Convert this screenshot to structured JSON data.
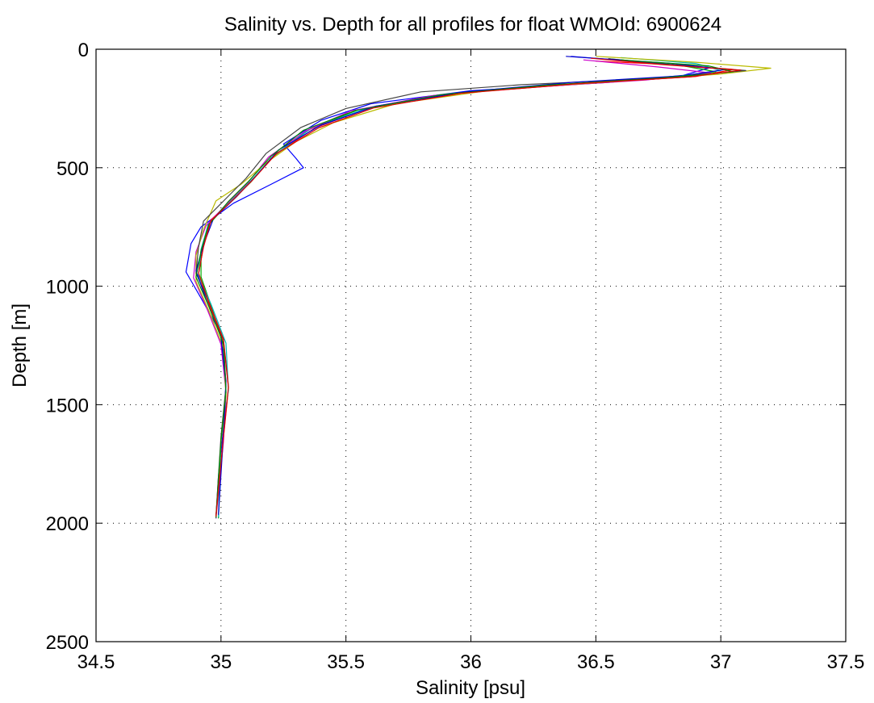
{
  "chart_data": {
    "type": "line",
    "title": "Salinity vs. Depth for all profiles for float WMOId: 6900624",
    "xlabel": "Salinity [psu]",
    "ylabel": "Depth [m]",
    "xlim": [
      34.5,
      37.5
    ],
    "ylim": [
      0,
      2500
    ],
    "y_reversed": true,
    "grid": true,
    "xticks": [
      34.5,
      35,
      35.5,
      36,
      36.5,
      37,
      37.5
    ],
    "yticks": [
      0,
      500,
      1000,
      1500,
      2000,
      2500
    ],
    "xtick_labels": [
      "34.5",
      "35",
      "35.5",
      "36",
      "36.5",
      "37",
      "37.5"
    ],
    "ytick_labels": [
      "0",
      "500",
      "1000",
      "1500",
      "2000",
      "2500"
    ],
    "series": [
      {
        "color": "#0000ff",
        "points": [
          [
            36.4,
            30
          ],
          [
            36.7,
            55
          ],
          [
            36.95,
            80
          ],
          [
            36.85,
            110
          ],
          [
            36.55,
            140
          ],
          [
            36.0,
            175
          ],
          [
            35.6,
            230
          ],
          [
            35.4,
            300
          ],
          [
            35.25,
            400
          ],
          [
            35.3,
            460
          ],
          [
            35.33,
            500
          ],
          [
            35.2,
            570
          ],
          [
            35.05,
            650
          ],
          [
            34.92,
            750
          ],
          [
            34.88,
            820
          ],
          [
            34.86,
            940
          ],
          [
            34.92,
            1050
          ],
          [
            35.0,
            1200
          ],
          [
            35.02,
            1400
          ],
          [
            35.01,
            1600
          ],
          [
            34.99,
            1800
          ],
          [
            34.98,
            1980
          ]
        ]
      },
      {
        "color": "#00aa00",
        "points": [
          [
            36.55,
            40
          ],
          [
            36.85,
            70
          ],
          [
            36.98,
            95
          ],
          [
            36.75,
            125
          ],
          [
            36.3,
            155
          ],
          [
            35.9,
            190
          ],
          [
            35.55,
            255
          ],
          [
            35.35,
            340
          ],
          [
            35.2,
            460
          ],
          [
            35.12,
            560
          ],
          [
            35.03,
            650
          ],
          [
            34.95,
            740
          ],
          [
            34.92,
            850
          ],
          [
            34.92,
            960
          ],
          [
            34.96,
            1080
          ],
          [
            35.01,
            1250
          ],
          [
            35.02,
            1450
          ],
          [
            35.0,
            1650
          ],
          [
            34.99,
            1980
          ]
        ]
      },
      {
        "color": "#ff0000",
        "points": [
          [
            36.5,
            50
          ],
          [
            36.8,
            65
          ],
          [
            37.05,
            85
          ],
          [
            36.9,
            115
          ],
          [
            36.45,
            145
          ],
          [
            35.95,
            185
          ],
          [
            35.6,
            245
          ],
          [
            35.38,
            330
          ],
          [
            35.22,
            440
          ],
          [
            35.13,
            545
          ],
          [
            35.05,
            630
          ],
          [
            34.96,
            720
          ],
          [
            34.93,
            830
          ],
          [
            34.91,
            950
          ],
          [
            34.95,
            1070
          ],
          [
            35.01,
            1230
          ],
          [
            35.03,
            1430
          ],
          [
            35.01,
            1640
          ],
          [
            34.98,
            1970
          ]
        ]
      },
      {
        "color": "#00bbbb",
        "points": [
          [
            36.6,
            35
          ],
          [
            36.9,
            60
          ],
          [
            37.0,
            90
          ],
          [
            36.8,
            118
          ],
          [
            36.35,
            150
          ],
          [
            35.92,
            188
          ],
          [
            35.58,
            250
          ],
          [
            35.36,
            335
          ],
          [
            35.21,
            450
          ],
          [
            35.12,
            555
          ],
          [
            35.04,
            640
          ],
          [
            34.95,
            735
          ],
          [
            34.92,
            845
          ],
          [
            34.91,
            955
          ],
          [
            34.96,
            1075
          ],
          [
            35.02,
            1240
          ],
          [
            35.03,
            1440
          ],
          [
            35.0,
            1650
          ],
          [
            34.99,
            1975
          ]
        ]
      },
      {
        "color": "#cc00cc",
        "points": [
          [
            36.45,
            45
          ],
          [
            36.75,
            75
          ],
          [
            36.96,
            100
          ],
          [
            36.7,
            130
          ],
          [
            36.25,
            160
          ],
          [
            35.85,
            195
          ],
          [
            35.52,
            260
          ],
          [
            35.34,
            345
          ],
          [
            35.19,
            455
          ],
          [
            35.11,
            560
          ],
          [
            35.03,
            645
          ],
          [
            34.94,
            745
          ],
          [
            34.9,
            855
          ],
          [
            34.89,
            965
          ],
          [
            34.94,
            1085
          ],
          [
            35.0,
            1245
          ],
          [
            35.02,
            1445
          ],
          [
            35.01,
            1655
          ],
          [
            34.98,
            1980
          ]
        ]
      },
      {
        "color": "#bbbb00",
        "points": [
          [
            36.5,
            30
          ],
          [
            36.9,
            55
          ],
          [
            37.2,
            80
          ],
          [
            37.0,
            105
          ],
          [
            36.6,
            135
          ],
          [
            36.1,
            170
          ],
          [
            35.7,
            230
          ],
          [
            35.45,
            310
          ],
          [
            35.3,
            390
          ],
          [
            35.18,
            480
          ],
          [
            35.08,
            570
          ],
          [
            34.98,
            640
          ],
          [
            34.93,
            760
          ],
          [
            34.9,
            870
          ],
          [
            34.9,
            980
          ],
          [
            34.95,
            1100
          ],
          [
            35.01,
            1260
          ],
          [
            35.02,
            1460
          ],
          [
            35.0,
            1660
          ],
          [
            34.98,
            1975
          ]
        ]
      },
      {
        "color": "#444444",
        "points": [
          [
            36.55,
            40
          ],
          [
            36.85,
            70
          ],
          [
            37.1,
            90
          ],
          [
            36.8,
            120
          ],
          [
            36.2,
            150
          ],
          [
            35.8,
            180
          ],
          [
            35.5,
            250
          ],
          [
            35.32,
            330
          ],
          [
            35.18,
            440
          ],
          [
            35.1,
            545
          ],
          [
            35.02,
            630
          ],
          [
            34.93,
            725
          ],
          [
            34.91,
            835
          ],
          [
            34.9,
            945
          ],
          [
            34.95,
            1065
          ],
          [
            35.01,
            1225
          ],
          [
            35.02,
            1425
          ],
          [
            35.0,
            1635
          ],
          [
            34.98,
            1970
          ]
        ]
      },
      {
        "color": "#0000cc",
        "points": [
          [
            36.38,
            30
          ],
          [
            36.8,
            60
          ],
          [
            37.02,
            85
          ],
          [
            36.85,
            112
          ],
          [
            36.4,
            140
          ],
          [
            35.98,
            180
          ],
          [
            35.62,
            240
          ],
          [
            35.4,
            320
          ],
          [
            35.23,
            425
          ],
          [
            35.14,
            535
          ],
          [
            35.06,
            625
          ],
          [
            34.97,
            715
          ],
          [
            34.93,
            825
          ],
          [
            34.9,
            935
          ],
          [
            34.94,
            1055
          ],
          [
            35.0,
            1215
          ],
          [
            35.02,
            1415
          ],
          [
            35.01,
            1625
          ],
          [
            34.99,
            1965
          ]
        ]
      },
      {
        "color": "#008800",
        "points": [
          [
            36.6,
            45
          ],
          [
            36.95,
            70
          ],
          [
            37.05,
            95
          ],
          [
            36.75,
            122
          ],
          [
            36.3,
            152
          ],
          [
            35.88,
            192
          ],
          [
            35.54,
            258
          ],
          [
            35.33,
            342
          ],
          [
            35.2,
            452
          ],
          [
            35.11,
            558
          ],
          [
            35.03,
            642
          ],
          [
            34.95,
            742
          ],
          [
            34.92,
            852
          ],
          [
            34.9,
            962
          ],
          [
            34.95,
            1082
          ],
          [
            35.01,
            1242
          ],
          [
            35.02,
            1442
          ],
          [
            35.0,
            1652
          ],
          [
            34.98,
            1978
          ]
        ]
      },
      {
        "color": "#dd0000",
        "points": [
          [
            36.48,
            38
          ],
          [
            36.78,
            66
          ],
          [
            37.08,
            88
          ],
          [
            36.88,
            116
          ],
          [
            36.42,
            146
          ],
          [
            35.96,
            186
          ],
          [
            35.61,
            248
          ],
          [
            35.39,
            332
          ],
          [
            35.22,
            442
          ],
          [
            35.13,
            548
          ],
          [
            35.05,
            634
          ],
          [
            34.96,
            724
          ],
          [
            34.93,
            834
          ],
          [
            34.91,
            944
          ],
          [
            34.95,
            1064
          ],
          [
            35.01,
            1224
          ],
          [
            35.03,
            1424
          ],
          [
            35.01,
            1634
          ],
          [
            34.98,
            1972
          ]
        ]
      }
    ]
  }
}
